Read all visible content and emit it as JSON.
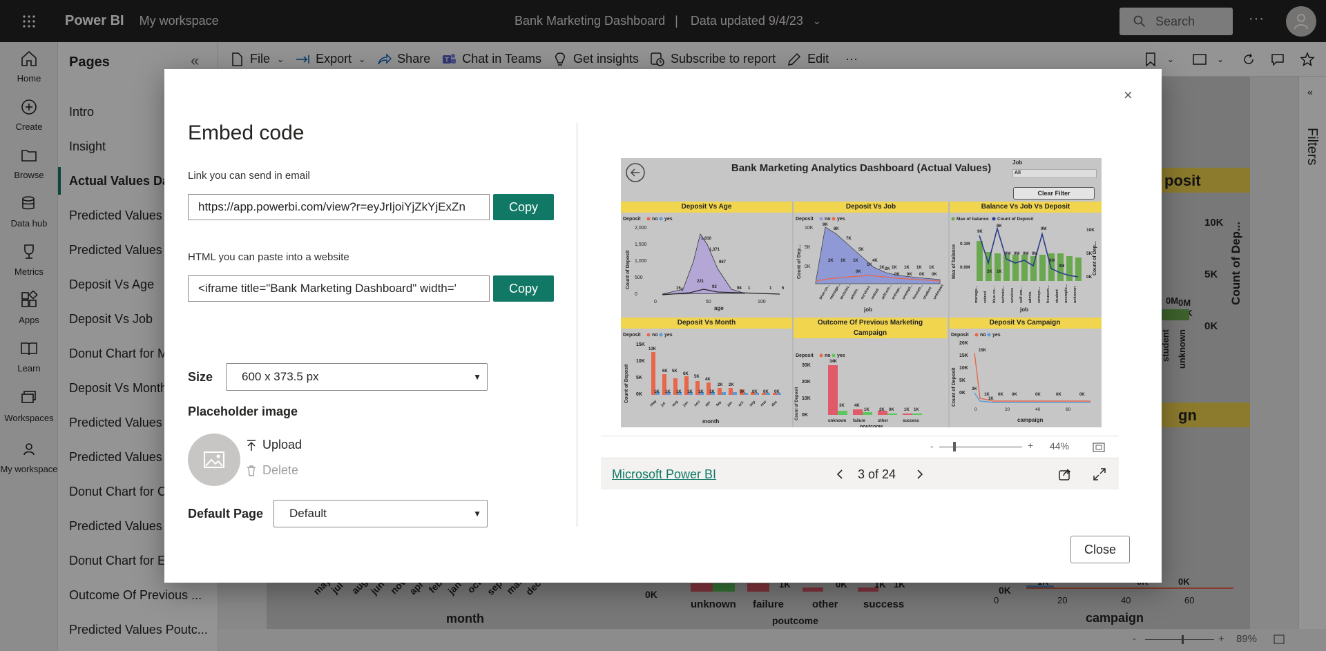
{
  "app": {
    "brand": "Power BI",
    "workspace": "My workspace",
    "report_title": "Bank Marketing Dashboard",
    "title_separator": "|",
    "data_updated": "Data updated 9/4/23",
    "search_placeholder": "Search",
    "more": "···"
  },
  "leftnav": [
    {
      "label": "Home",
      "icon": "home-icon"
    },
    {
      "label": "Create",
      "icon": "create-icon"
    },
    {
      "label": "Browse",
      "icon": "browse-icon"
    },
    {
      "label": "Data hub",
      "icon": "data-hub-icon"
    },
    {
      "label": "Metrics",
      "icon": "metrics-icon"
    },
    {
      "label": "Apps",
      "icon": "apps-icon"
    },
    {
      "label": "Learn",
      "icon": "learn-icon"
    },
    {
      "label": "Workspaces",
      "icon": "workspaces-icon"
    },
    {
      "label": "My workspace",
      "icon": "my-workspace-icon"
    }
  ],
  "pages": {
    "title": "Pages",
    "collapse": "«",
    "items": [
      "Intro",
      "Insight",
      "Actual Values Das",
      "Predicted Values D",
      "Predicted Values D",
      "Deposit Vs Age",
      "Deposit Vs Job",
      "Donut Chart for M",
      "Deposit Vs Month",
      "Predicted Values A",
      "Predicted Values J",
      "Donut Chart for C",
      "Predicted Values M",
      "Donut Chart for Ec",
      "Outcome Of Previous ...",
      "Predicted Values Poutc..."
    ],
    "active_index": 2
  },
  "toolbar": {
    "file": "File",
    "export": "Export",
    "share": "Share",
    "chat": "Chat in Teams",
    "insights": "Get insights",
    "subscribe": "Subscribe to report",
    "edit": "Edit",
    "more": "···"
  },
  "background_report": {
    "filter_btn": "ilter",
    "deposit_header": "posit",
    "campaign_header": "gn",
    "y_ticks": [
      "10K",
      "5K",
      "0K"
    ],
    "y_label": "Count of Dep...",
    "bar_labels": [
      "0M",
      "0M",
      "0K"
    ],
    "job_labels": [
      "student",
      "unknown"
    ],
    "month_label": "month",
    "month_ticks": [
      "may",
      "jul",
      "aug",
      "jun",
      "nov",
      "apr",
      "feb",
      "jan",
      "oct",
      "sep",
      "mar",
      "dec"
    ],
    "poutcome_label": "poutcome",
    "poutcome_cats": [
      "unknown",
      "failure",
      "other",
      "success"
    ],
    "poutcome_vals": [
      "0K",
      "1K",
      "0K",
      "1K",
      "1K"
    ],
    "campaign_label": "campaign",
    "campaign_ticks": [
      "0",
      "20",
      "40",
      "60"
    ],
    "campaign_vals": [
      "1K",
      "0K",
      "0K",
      "0K",
      "0K",
      "0K"
    ]
  },
  "statusbar": {
    "zoom": "89%",
    "minus": "-",
    "plus": "+"
  },
  "filters": {
    "label": "Filters"
  },
  "modal": {
    "title": "Embed code",
    "close_x": "×",
    "link_label": "Link you can send in email",
    "link_value": "https://app.powerbi.com/view?r=eyJrIjoiYjZkYjExZn",
    "html_label": "HTML you can paste into a website",
    "html_value": "<iframe title=\"Bank Marketing Dashboard\" width='",
    "copy": "Copy",
    "size_label": "Size",
    "size_value": "600 x 373.5 px",
    "placeholder_label": "Placeholder image",
    "upload": "Upload",
    "delete": "Delete",
    "default_page_label": "Default Page",
    "default_page_value": "Default",
    "close": "Close"
  },
  "preview": {
    "zoom_minus": "-",
    "zoom_plus": "+",
    "zoom": "44%",
    "link": "Microsoft Power BI",
    "pager": "3 of 24",
    "report": {
      "title": "Bank Marketing Analytics Dashboard (Actual Values)",
      "job_label": "Job",
      "job_value": "All",
      "clear_filter": "Clear Filter",
      "tiles": [
        "Deposit Vs Age",
        "Deposit Vs Job",
        "Balance Vs Job Vs Deposit",
        "Deposit Vs Month",
        "Outcome Of Previous Marketing Campaign",
        "Deposit Vs Campaign"
      ],
      "legend_deposit": "Deposit",
      "legend_no": "no",
      "legend_yes": "yes",
      "legend_balance": "Max of balance",
      "legend_count": "Count of Deposit",
      "age_axis": "age",
      "age_y": "Count of Deposit",
      "age_yticks": [
        "2,000",
        "1,500",
        "1,000",
        "500",
        "0"
      ],
      "age_xticks": [
        "0",
        "50",
        "100"
      ],
      "age_points": [
        "1,810",
        "1,371",
        "867",
        "221",
        "93",
        "98",
        "15",
        "1",
        "1",
        "5",
        "1"
      ],
      "job_axis": "job",
      "job_y": "Count of Dep...",
      "job_yticks": [
        "10K",
        "5K",
        "0K"
      ],
      "job_vals": [
        "9K",
        "8K",
        "7K",
        "5K",
        "4K",
        "2K",
        "2K",
        "1K",
        "1K",
        "1K",
        "1K",
        "1K",
        "1K",
        "1K",
        "1K",
        "0K",
        "0K",
        "0K",
        "0K",
        "0K"
      ],
      "jobs": [
        "blue-co...",
        "manage...",
        "technici...",
        "admin.",
        "services",
        "retired",
        "self-em...",
        "entrepr...",
        "unempl...",
        "househ...",
        "student",
        "unknown"
      ],
      "bal_axis": "job",
      "bal_y": "Max of balance",
      "bal_yticks": [
        "0.1M",
        "0.0M"
      ],
      "bal_y2": "Count of Dep...",
      "bal_y2ticks": [
        "10K",
        "5K",
        "0K"
      ],
      "bal_vals": [
        "9K",
        "8K",
        "0M",
        "0M",
        "0M",
        "0M",
        "0M",
        "0M",
        "2K",
        "1K",
        "0M"
      ],
      "bal_jobs": [
        "manage...",
        "retired",
        "blue-co...",
        "technici...",
        "services",
        "self-em...",
        "admin.",
        "entrepr...",
        "housem...",
        "student",
        "unemplo...",
        "unknown"
      ],
      "month_axis": "month",
      "month_y": "Count of Deposit",
      "month_yticks": [
        "15K",
        "10K",
        "5K",
        "0K"
      ],
      "month_vals": [
        "13K",
        "6K",
        "5K",
        "6K",
        "5K",
        "4K",
        "2K",
        "2K",
        "1K",
        "1K",
        "1K",
        "1K",
        "1K",
        "1K",
        "0K",
        "0K",
        "0K",
        "0K"
      ],
      "months": [
        "may",
        "jul",
        "aug",
        "jun",
        "nov",
        "apr",
        "feb",
        "jan",
        "oct",
        "sep",
        "mar",
        "dec"
      ],
      "pout_axis": "poutcome",
      "pout_y": "Count of Deposit",
      "pout_yticks": [
        "30K",
        "20K",
        "10K",
        "0K"
      ],
      "pout_vals": [
        "34K",
        "3K",
        "4K",
        "1K",
        "2K",
        "0K",
        "1K",
        "1K"
      ],
      "pout_cats": [
        "unknown",
        "failure",
        "other",
        "success"
      ],
      "camp_axis": "campaign",
      "camp_y": "Count of Deposit",
      "camp_yticks": [
        "20K",
        "15K",
        "10K",
        "5K",
        "0K"
      ],
      "camp_xticks": [
        "0",
        "20",
        "40",
        "60"
      ],
      "camp_vals": [
        "15K",
        "3K",
        "1K",
        "1K",
        "0K",
        "0K",
        "0K",
        "0K",
        "0K"
      ]
    }
  },
  "colors": {
    "accent": "#117865",
    "yellow": "#f1d54e",
    "no": "#e8674a",
    "yes": "#5b9bd5",
    "age_fill": "#b4a7d6",
    "job_fill": "#8e99d6",
    "bal_bar": "#6aa84f"
  }
}
